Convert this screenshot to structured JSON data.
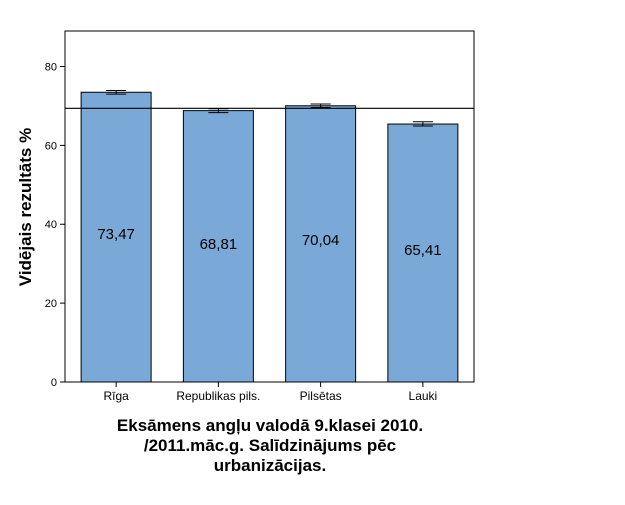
{
  "chart_data": {
    "type": "bar",
    "categories": [
      "Rīga",
      "Republikas pils.",
      "Pilsētas",
      "Lauki"
    ],
    "values": [
      73.47,
      68.81,
      70.04,
      65.41
    ],
    "value_labels": [
      "73,47",
      "68,81",
      "70,04",
      "65,41"
    ],
    "error_bars": [
      {
        "low": 73.0,
        "high": 73.9
      },
      {
        "low": 68.3,
        "high": 69.3
      },
      {
        "low": 69.6,
        "high": 70.5
      },
      {
        "low": 64.9,
        "high": 66.0
      }
    ],
    "reference_line": 69.4,
    "ylabel": "Vidējais rezultāts %",
    "xlabel": "",
    "ylim": [
      0,
      89
    ],
    "yticks": [
      0,
      20,
      40,
      60,
      80
    ],
    "title_lines": [
      "Eksāmens angļu valodā 9.klasei 2010.",
      "/2011.māc.g. Salīdzinājums pēc",
      "urbanizācijas."
    ],
    "bar_color": "#7aa9d8",
    "grid": false,
    "legend": "none"
  }
}
